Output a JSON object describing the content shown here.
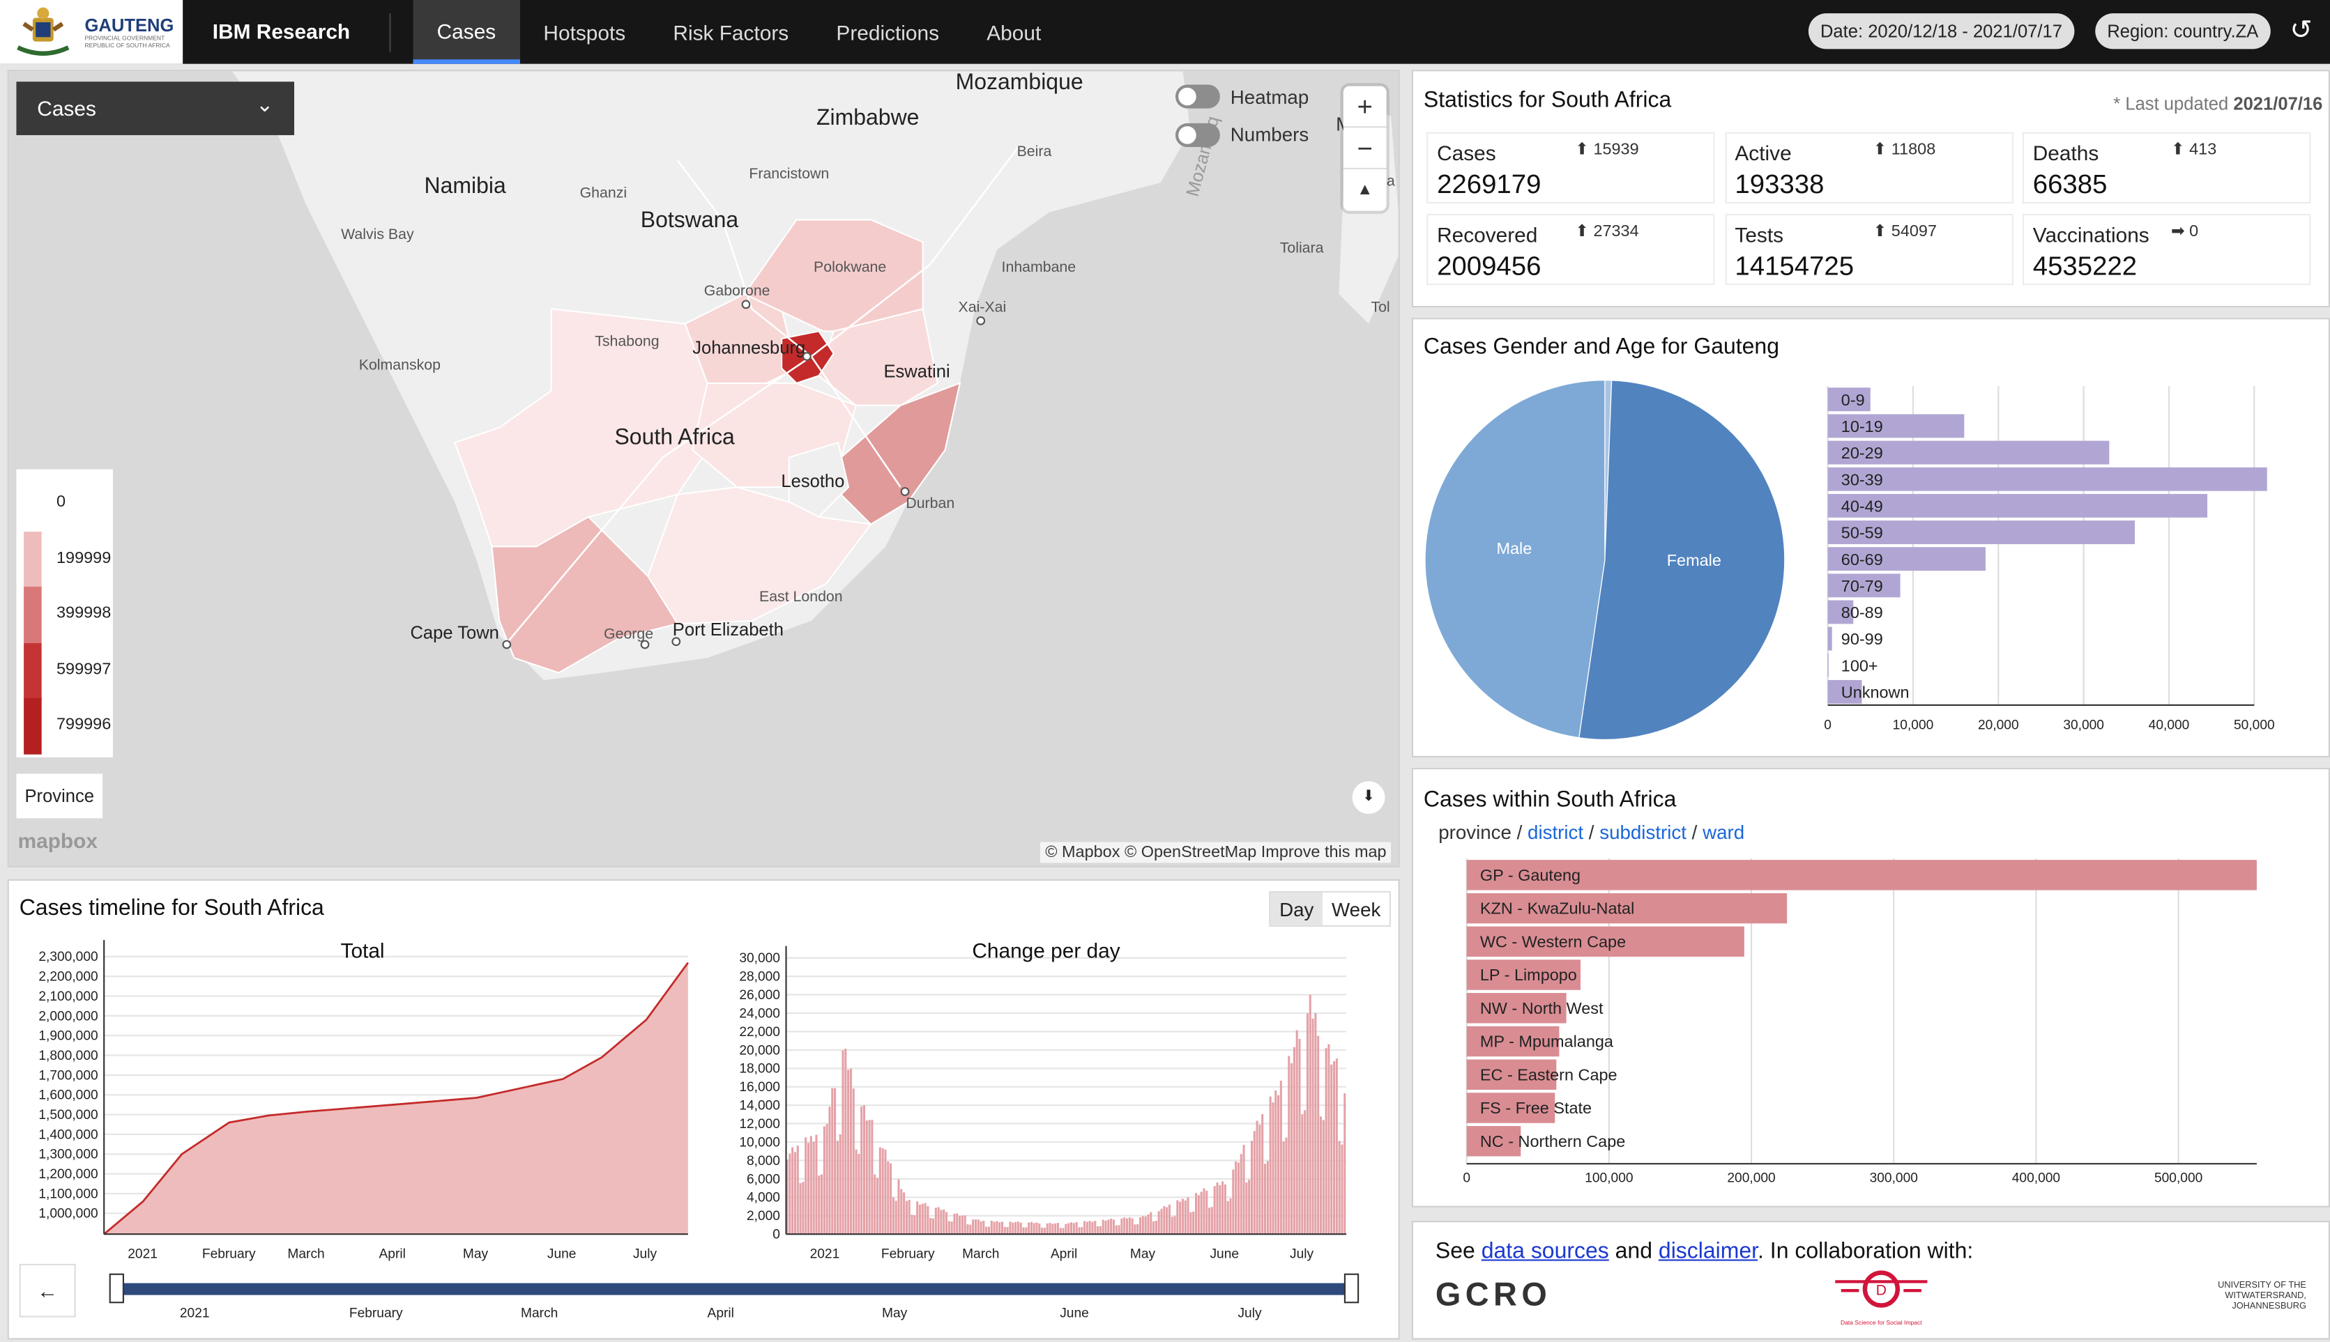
{
  "header": {
    "logo_title": "GAUTENG",
    "logo_sub1": "PROVINCIAL GOVERNMENT",
    "logo_sub2": "REPUBLIC OF SOUTH AFRICA",
    "brand": "IBM Research",
    "tabs": [
      {
        "label": "Cases",
        "active": true
      },
      {
        "label": "Hotspots"
      },
      {
        "label": "Risk Factors"
      },
      {
        "label": "Predictions"
      },
      {
        "label": "About"
      }
    ],
    "date_pill": "Date: 2020/12/18 - 2021/07/17",
    "region_pill": "Region: country.ZA",
    "refresh_icon": "undo-icon"
  },
  "map": {
    "metric_dropdown": "Cases",
    "toggles": [
      {
        "label": "Heatmap",
        "on": false
      },
      {
        "label": "Numbers",
        "on": false
      }
    ],
    "zoom_in": "+",
    "zoom_out": "−",
    "compass": "▲",
    "legend": [
      "0",
      "199999",
      "399998",
      "599997",
      "799996"
    ],
    "legend_colors": [
      "#ffffff",
      "#eebcbc",
      "#d97878",
      "#c53434",
      "#b42020"
    ],
    "level_button": "Province",
    "mapbox_logo": "mapbox",
    "attribution": "© Mapbox © OpenStreetMap Improve this map",
    "download_icon": "⬇",
    "labels": {
      "mozambique": "Mozambique",
      "zimbabwe": "Zimbabwe",
      "namibia": "Namibia",
      "botswana": "Botswana",
      "south_africa": "South Africa",
      "lesotho": "Lesotho",
      "eswatini": "Eswatini",
      "beira": "Beira",
      "francistown": "Francistown",
      "ghanzi": "Ghanzi",
      "walvis": "Walvis Bay",
      "polokwane": "Polokwane",
      "inhambane": "Inhambane",
      "gaborone": "Gaborone",
      "xaixai": "Xai-Xai",
      "tshabong": "Tshabong",
      "johannesburg": "Johannesburg",
      "kolmanskop": "Kolmanskop",
      "durban": "Durban",
      "eastlondon": "East London",
      "capetown": "Cape Town",
      "george": "George",
      "pe": "Port Elizabeth",
      "toliara": "Toliara",
      "moz_channel": "Mozambiq",
      "madag": "Mag",
      "tol": "Tol",
      "ina": "ina"
    }
  },
  "stats": {
    "title": "Statistics for South Africa",
    "updated_prefix": "* Last updated ",
    "updated": "2021/07/16",
    "items": [
      {
        "label": "Cases",
        "value": "2269179",
        "delta": "⬆ 15939"
      },
      {
        "label": "Active",
        "value": "193338",
        "delta": "⬆ 11808"
      },
      {
        "label": "Deaths",
        "value": "66385",
        "delta": "⬆ 413"
      },
      {
        "label": "Recovered",
        "value": "2009456",
        "delta": "⬆ 27334"
      },
      {
        "label": "Tests",
        "value": "14154725",
        "delta": "⬆ 54097"
      },
      {
        "label": "Vaccinations",
        "value": "4535222",
        "delta": "➡ 0"
      }
    ]
  },
  "gender": {
    "title": "Cases Gender and Age for Gauteng",
    "pie": [
      {
        "label": "Male",
        "share": 0.477,
        "color": "#7ea9d6"
      },
      {
        "label": "Female",
        "share": 0.517,
        "color": "#5183bf"
      },
      {
        "label": "",
        "share": 0.006,
        "color": "#a9c3e2"
      }
    ],
    "age": {
      "categories": [
        "0-9",
        "10-19",
        "20-29",
        "30-39",
        "40-49",
        "50-59",
        "60-69",
        "70-79",
        "80-89",
        "90-99",
        "100+",
        "Unknown"
      ],
      "values": [
        5000,
        16000,
        33000,
        51500,
        44500,
        36000,
        18500,
        8500,
        3000,
        500,
        100,
        4000
      ],
      "ticks": [
        "0",
        "10,000",
        "20,000",
        "30,000",
        "40,000",
        "50,000"
      ],
      "max": 50000
    }
  },
  "within": {
    "title": "Cases within South Africa",
    "crumbs": {
      "province": "province",
      "sep": " / ",
      "district": "district",
      "subdistrict": "subdistrict",
      "ward": "ward"
    },
    "categories": [
      "GP - Gauteng",
      "KZN - KwaZulu-Natal",
      "WC - Western Cape",
      "LP - Limpopo",
      "NW - North West",
      "MP - Mpumalanga",
      "EC - Eastern Cape",
      "FS - Free State",
      "NC - Northern Cape"
    ],
    "values": [
      555000,
      225000,
      195000,
      80000,
      70000,
      65000,
      63000,
      62000,
      38000
    ],
    "ticks": [
      "0",
      "100,000",
      "200,000",
      "300,000",
      "400,000",
      "500,000"
    ],
    "max": 500000
  },
  "footer": {
    "see": "See ",
    "data_sources": "data sources",
    "and": " and ",
    "disclaimer": "disclaimer",
    "collab": ". In collaboration with:",
    "gcro": "GCRO",
    "dssi": "Data Science for Social Impact",
    "wits1": "UNIVERSITY OF THE",
    "wits2": "WITWATERSRAND,",
    "wits3": "JOHANNESBURG"
  },
  "timeline": {
    "title": "Cases timeline for South Africa",
    "buttons": [
      "Day",
      "Week"
    ],
    "back_icon": "←",
    "total": {
      "title": "Total",
      "yticks": [
        "1,000,000",
        "1,100,000",
        "1,200,000",
        "1,300,000",
        "1,400,000",
        "1,500,000",
        "1,600,000",
        "1,700,000",
        "1,800,000",
        "1,900,000",
        "2,000,000",
        "2,100,000",
        "2,200,000",
        "2,300,000"
      ],
      "months": [
        "2021",
        "February",
        "March",
        "April",
        "May",
        "June",
        "July"
      ]
    },
    "change": {
      "title": "Change per day",
      "yticks": [
        "0",
        "2,000",
        "4,000",
        "6,000",
        "8,000",
        "10,000",
        "12,000",
        "14,000",
        "16,000",
        "18,000",
        "20,000",
        "22,000",
        "24,000",
        "26,000",
        "28,000",
        "30,000"
      ],
      "months": [
        "2021",
        "February",
        "March",
        "April",
        "May",
        "June",
        "July"
      ]
    },
    "brush_months": [
      "2021",
      "February",
      "March",
      "April",
      "May",
      "June",
      "July"
    ]
  },
  "chart_data": [
    {
      "type": "area",
      "title": "Total",
      "x": [
        "2020-12-18",
        "2021-01-01",
        "2021-01-15",
        "2021-02-01",
        "2021-02-15",
        "2021-03-01",
        "2021-04-01",
        "2021-05-01",
        "2021-06-01",
        "2021-06-15",
        "2021-07-01",
        "2021-07-16"
      ],
      "values": [
        920000,
        1060000,
        1300000,
        1460000,
        1495000,
        1515000,
        1550000,
        1585000,
        1680000,
        1790000,
        1980000,
        2269179
      ],
      "ylim": [
        1000000,
        2300000
      ]
    },
    {
      "type": "bar",
      "title": "Change per day",
      "x": [
        "2020-12-18",
        "2021-01-01",
        "2021-01-08",
        "2021-01-15",
        "2021-02-01",
        "2021-03-01",
        "2021-04-01",
        "2021-05-01",
        "2021-06-01",
        "2021-06-20",
        "2021-07-03",
        "2021-07-16"
      ],
      "values": [
        9000,
        12000,
        21000,
        15000,
        4000,
        1500,
        1200,
        2000,
        6000,
        16000,
        26000,
        17000
      ],
      "ylim": [
        0,
        30000
      ]
    },
    {
      "type": "bar",
      "title": "Cases Gender and Age for Gauteng",
      "categories": [
        "0-9",
        "10-19",
        "20-29",
        "30-39",
        "40-49",
        "50-59",
        "60-69",
        "70-79",
        "80-89",
        "90-99",
        "100+",
        "Unknown"
      ],
      "values": [
        5000,
        16000,
        33000,
        51500,
        44500,
        36000,
        18500,
        8500,
        3000,
        500,
        100,
        4000
      ]
    },
    {
      "type": "pie",
      "title": "Cases Gender and Age for Gauteng",
      "categories": [
        "Male",
        "Female"
      ],
      "values": [
        47.7,
        51.7
      ]
    },
    {
      "type": "bar",
      "title": "Cases within South Africa",
      "categories": [
        "GP - Gauteng",
        "KZN - KwaZulu-Natal",
        "WC - Western Cape",
        "LP - Limpopo",
        "NW - North West",
        "MP - Mpumalanga",
        "EC - Eastern Cape",
        "FS - Free State",
        "NC - Northern Cape"
      ],
      "values": [
        555000,
        225000,
        195000,
        80000,
        70000,
        65000,
        63000,
        62000,
        38000
      ]
    }
  ]
}
